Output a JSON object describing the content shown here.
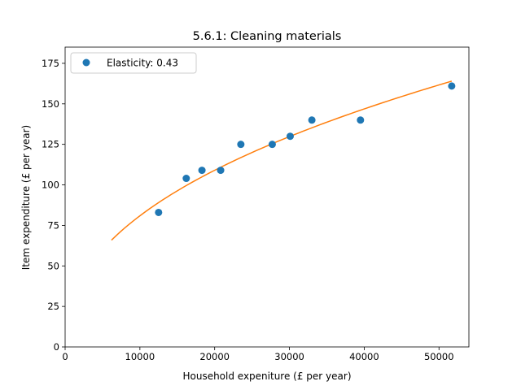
{
  "chart_data": {
    "type": "scatter",
    "title": "5.6.1: Cleaning materials",
    "xlabel": "Household expeniture (£ per year)",
    "ylabel": "Item expenditure (£ per year)",
    "xlim": [
      0,
      54000
    ],
    "ylim": [
      0,
      185
    ],
    "xticks": [
      0,
      10000,
      20000,
      30000,
      40000,
      50000
    ],
    "yticks": [
      0,
      25,
      50,
      75,
      100,
      125,
      150,
      175
    ],
    "grid": false,
    "legend_position": "top-left",
    "series": [
      {
        "name": "Elasticity: 0.43",
        "kind": "points",
        "color": "#1f77b4",
        "points": [
          [
            12500,
            83
          ],
          [
            16200,
            104
          ],
          [
            18300,
            109
          ],
          [
            20800,
            109
          ],
          [
            23500,
            125
          ],
          [
            27700,
            125
          ],
          [
            30100,
            130
          ],
          [
            33000,
            140
          ],
          [
            39500,
            140
          ],
          [
            51700,
            161
          ]
        ]
      },
      {
        "kind": "fit-curve",
        "color": "#ff7f0e",
        "elasticity": 0.43,
        "points": [
          [
            6200,
            67
          ],
          [
            10000,
            81
          ],
          [
            15000,
            97
          ],
          [
            20000,
            109
          ],
          [
            25000,
            120
          ],
          [
            30000,
            130
          ],
          [
            35000,
            139
          ],
          [
            40000,
            147
          ],
          [
            45000,
            153
          ],
          [
            51700,
            164
          ]
        ]
      }
    ]
  }
}
